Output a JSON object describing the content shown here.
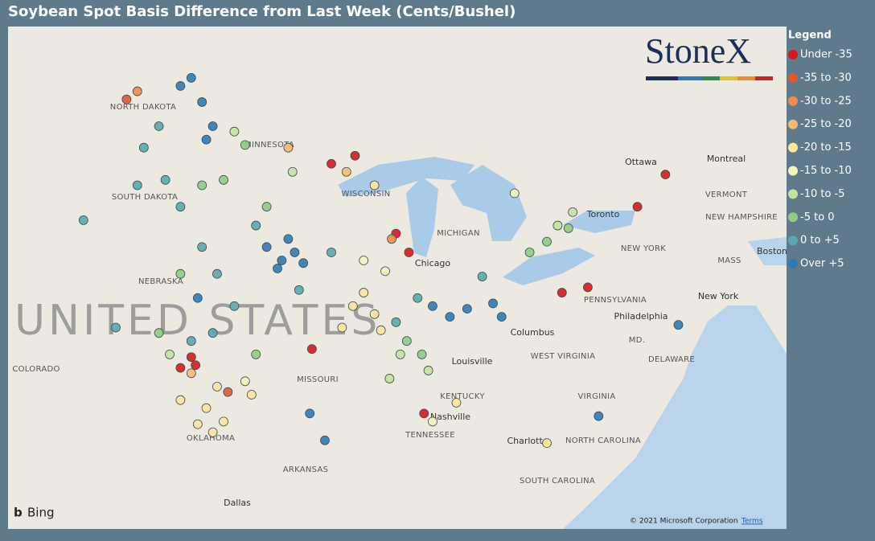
{
  "header": {
    "title": "Soybean Spot Basis Difference from Last Week (Cents/Bushel)"
  },
  "logo": {
    "text": "StoneX"
  },
  "legend": {
    "title": "Legend",
    "classes": [
      {
        "label": "Under -35",
        "color": "#d7191c",
        "points": [
          [
            -90.4,
            45.9
          ],
          [
            -91.5,
            45.6
          ],
          [
            -88.5,
            43.0
          ],
          [
            -87.9,
            42.3
          ],
          [
            -98.0,
            38.4
          ],
          [
            -98.5,
            38.0
          ],
          [
            -92.4,
            38.7
          ],
          [
            -87.2,
            36.3
          ],
          [
            -80.8,
            40.8
          ],
          [
            -79.6,
            41.0
          ],
          [
            -76.0,
            45.2
          ],
          [
            -77.3,
            44.0
          ],
          [
            -97.8,
            38.1
          ]
        ]
      },
      {
        "label": "-35 to -30",
        "color": "#e5562e",
        "points": [
          [
            -101.0,
            48.0
          ],
          [
            -96.3,
            37.1
          ]
        ]
      },
      {
        "label": "-30 to -25",
        "color": "#f08c4a",
        "points": [
          [
            -100.5,
            48.3
          ],
          [
            -88.7,
            42.8
          ]
        ]
      },
      {
        "label": "-25 to -20",
        "color": "#f7bb6f",
        "points": [
          [
            -93.5,
            46.2
          ],
          [
            -90.8,
            45.3
          ],
          [
            -98.0,
            37.8
          ]
        ]
      },
      {
        "label": "-20 to -15",
        "color": "#fde59a",
        "points": [
          [
            -90.5,
            40.3
          ],
          [
            -89.5,
            40.0
          ],
          [
            -97.3,
            36.5
          ],
          [
            -97.7,
            35.9
          ],
          [
            -96.8,
            37.3
          ],
          [
            -89.5,
            44.8
          ],
          [
            -91.0,
            39.5
          ],
          [
            -95.2,
            37.0
          ],
          [
            -98.5,
            36.8
          ],
          [
            -81.5,
            35.2
          ],
          [
            -85.7,
            36.7
          ],
          [
            -97.0,
            35.6
          ],
          [
            -96.5,
            36.0
          ],
          [
            -90.0,
            40.8
          ],
          [
            -89.2,
            39.4
          ]
        ]
      },
      {
        "label": "-15 to -10",
        "color": "#f2f5ba",
        "points": [
          [
            -90.0,
            42.0
          ],
          [
            -89.0,
            41.6
          ],
          [
            -83.0,
            44.5
          ],
          [
            -95.5,
            37.5
          ],
          [
            -86.8,
            36.0
          ]
        ]
      },
      {
        "label": "-10 to -5",
        "color": "#c4e29d",
        "points": [
          [
            -96.0,
            46.8
          ],
          [
            -93.3,
            45.3
          ],
          [
            -88.3,
            38.5
          ],
          [
            -88.8,
            37.6
          ],
          [
            -87.0,
            37.9
          ],
          [
            -80.3,
            43.8
          ],
          [
            -81.0,
            43.3
          ],
          [
            -99.0,
            38.5
          ]
        ]
      },
      {
        "label": "-5 to 0",
        "color": "#8fcc85",
        "points": [
          [
            -95.5,
            46.3
          ],
          [
            -96.5,
            45.0
          ],
          [
            -94.5,
            44.0
          ],
          [
            -98.5,
            41.5
          ],
          [
            -99.5,
            39.3
          ],
          [
            -82.3,
            42.3
          ],
          [
            -81.5,
            42.7
          ],
          [
            -80.5,
            43.2
          ],
          [
            -87.3,
            38.5
          ],
          [
            -88.0,
            39.0
          ],
          [
            -95.0,
            38.5
          ],
          [
            -97.5,
            44.8
          ]
        ]
      },
      {
        "label": "0 to +5",
        "color": "#5aa8ad",
        "points": [
          [
            -99.5,
            47.0
          ],
          [
            -100.2,
            46.2
          ],
          [
            -99.2,
            45.0
          ],
          [
            -98.5,
            44.0
          ],
          [
            -97.5,
            42.5
          ],
          [
            -96.8,
            41.5
          ],
          [
            -96.0,
            40.3
          ],
          [
            -97.0,
            39.3
          ],
          [
            -101.5,
            39.5
          ],
          [
            -95.0,
            43.3
          ],
          [
            -93.0,
            40.9
          ],
          [
            -91.5,
            42.3
          ],
          [
            -88.5,
            39.7
          ],
          [
            -87.5,
            40.6
          ],
          [
            -84.5,
            41.4
          ],
          [
            -100.5,
            44.8
          ],
          [
            -103.0,
            43.5
          ],
          [
            -98.0,
            39.0
          ]
        ]
      },
      {
        "label": "Over +5",
        "color": "#2c7bb6",
        "points": [
          [
            -98.5,
            48.5
          ],
          [
            -97.5,
            47.9
          ],
          [
            -97.0,
            47.0
          ],
          [
            -98.0,
            48.8
          ],
          [
            -97.3,
            46.5
          ],
          [
            -94.5,
            42.5
          ],
          [
            -93.8,
            42.0
          ],
          [
            -93.2,
            42.3
          ],
          [
            -94.0,
            41.7
          ],
          [
            -93.5,
            42.8
          ],
          [
            -92.8,
            41.9
          ],
          [
            -86.8,
            40.3
          ],
          [
            -86.0,
            39.9
          ],
          [
            -85.2,
            40.2
          ],
          [
            -84.0,
            40.4
          ],
          [
            -83.6,
            39.9
          ],
          [
            -97.7,
            40.6
          ],
          [
            -92.5,
            36.3
          ],
          [
            -91.8,
            35.3
          ],
          [
            -75.4,
            39.6
          ],
          [
            -79.1,
            36.2
          ]
        ]
      }
    ]
  },
  "map": {
    "labels": [
      "NORTH DAKOTA",
      "MINNESOTA",
      "SOUTH DAKOTA",
      "WISCONSIN",
      "MICHIGAN",
      "NEBRASKA",
      "MISSOURI",
      "COLORADO",
      "KENTUCKY",
      "TENNESSEE",
      "OKLAHOMA",
      "ARKANSAS",
      "PENNSYLVANIA",
      "NEW YORK",
      "WEST VIRGINIA",
      "VIRGINIA",
      "NORTH CAROLINA",
      "SOUTH CAROLINA",
      "Ottawa",
      "Montreal",
      "Toronto",
      "Chicago",
      "Louisville",
      "Nashville",
      "Columbus",
      "Charlotte",
      "Dallas",
      "Philadelphia",
      "New York",
      "Boston",
      "VERMONT",
      "NEW HAMPSHIRE",
      "MASS",
      "MD.",
      "DELAWARE",
      "UNITED STATES"
    ],
    "attribution": "© 2021 Microsoft Corporation",
    "terms": "Terms",
    "provider": "Bing"
  }
}
